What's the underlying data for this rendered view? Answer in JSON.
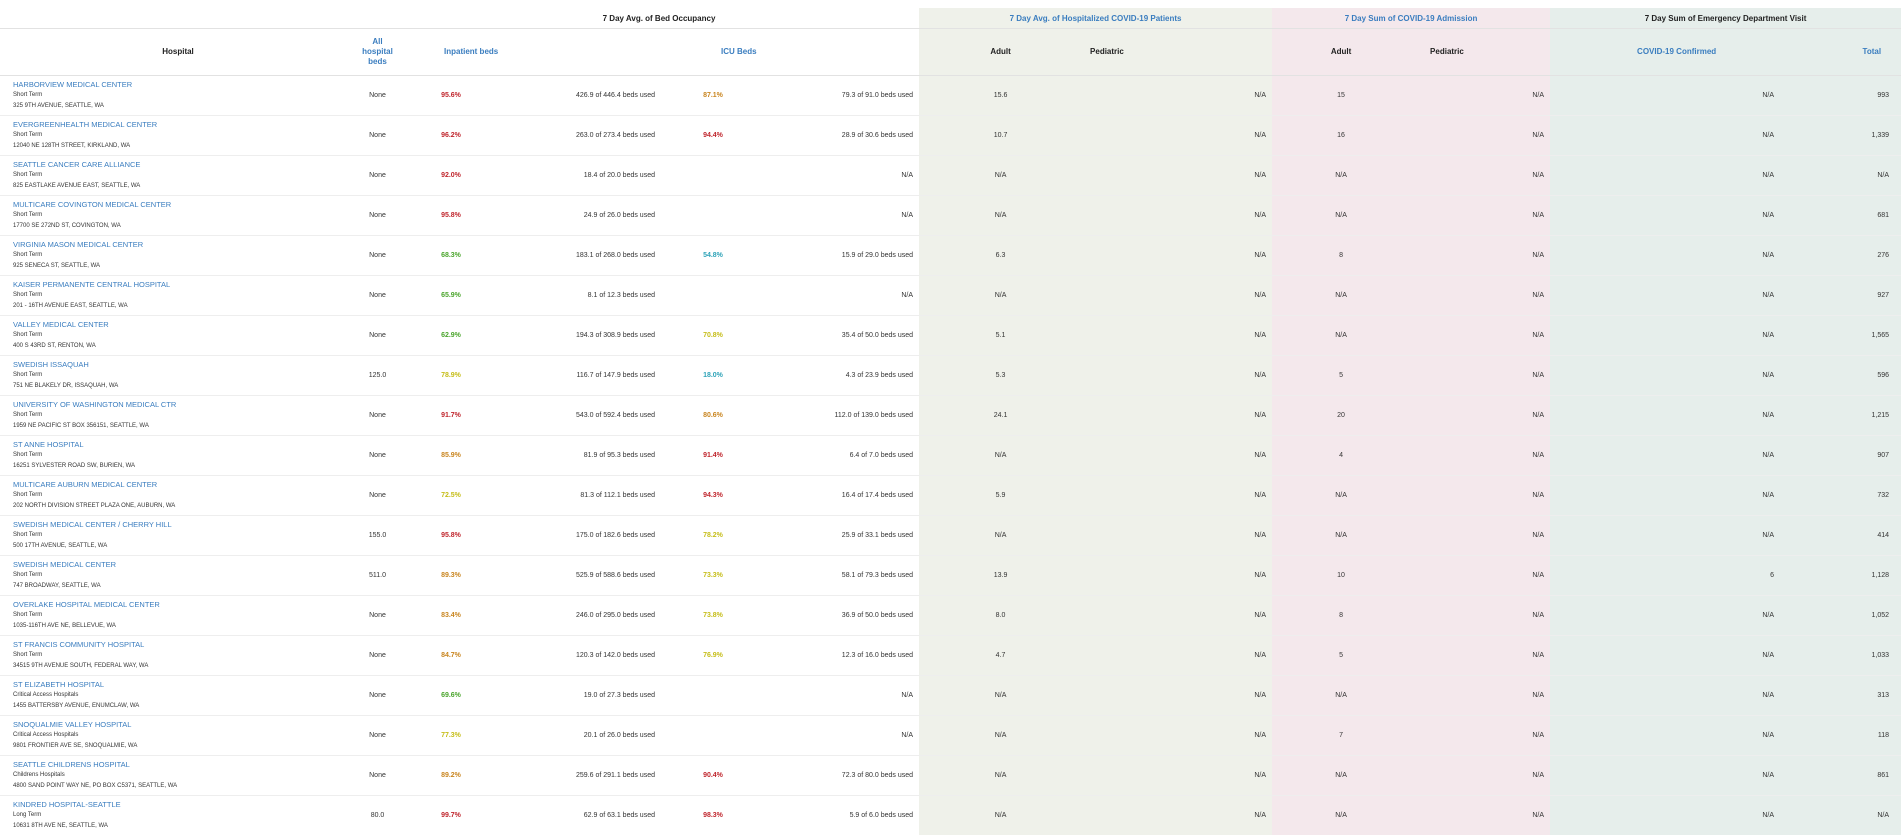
{
  "headers": {
    "group_bed": "7 Day Avg. of Bed Occupancy",
    "group_hosp": "7 Day Avg. of Hospitalized COVID-19 Patients",
    "group_adm": "7 Day Sum of COVID-19 Admission",
    "group_ed": "7 Day Sum of Emergency Department Visit",
    "hospital": "Hospital",
    "all_beds_1": "All",
    "all_beds_2": "hospital",
    "all_beds_3": "beds",
    "inpatient": "Inpatient beds",
    "icu": "ICU Beds",
    "adult": "Adult",
    "pediatric": "Pediatric",
    "adm_adult": "Adult",
    "adm_pediatric": "Pediatric",
    "covid_confirmed": "COVID-19 Confirmed",
    "total": "Total"
  },
  "colors": {
    "link_blue": "#3a7dbf",
    "red": "#c0262d",
    "orange": "#c9851f",
    "yellow": "#c6bd18",
    "green": "#4ba52d",
    "teal": "#2ea3b8",
    "hosp_bg": "#eff1ea",
    "adm_bg": "#f4e8ec",
    "ed_bg": "#e6eeeb"
  },
  "rows": [
    {
      "name": "HARBORVIEW MEDICAL CENTER",
      "type": "Short Term",
      "address": "325 9TH AVENUE, SEATTLE, WA",
      "all_beds": "None",
      "inp_pct": "95.6%",
      "inp_color": "#c0262d",
      "inp_used": "426.9 of 446.4 beds used",
      "icu_pct": "87.1%",
      "icu_color": "#c9851f",
      "icu_used": "79.3 of 91.0 beds used",
      "hosp_adult": "15.6",
      "hosp_ped": "N/A",
      "adm_adult": "15",
      "adm_ped": "N/A",
      "ed_covid": "N/A",
      "ed_total": "993"
    },
    {
      "name": "EVERGREENHEALTH MEDICAL CENTER",
      "type": "Short Term",
      "address": "12040 NE 128TH STREET, KIRKLAND, WA",
      "all_beds": "None",
      "inp_pct": "96.2%",
      "inp_color": "#c0262d",
      "inp_used": "263.0 of 273.4 beds used",
      "icu_pct": "94.4%",
      "icu_color": "#c0262d",
      "icu_used": "28.9 of 30.6 beds used",
      "hosp_adult": "10.7",
      "hosp_ped": "N/A",
      "adm_adult": "16",
      "adm_ped": "N/A",
      "ed_covid": "N/A",
      "ed_total": "1,339"
    },
    {
      "name": "SEATTLE CANCER CARE ALLIANCE",
      "type": "Short Term",
      "address": "825 EASTLAKE AVENUE EAST, SEATTLE, WA",
      "all_beds": "None",
      "inp_pct": "92.0%",
      "inp_color": "#c0262d",
      "inp_used": "18.4 of 20.0 beds used",
      "icu_pct": "",
      "icu_color": "",
      "icu_used": "N/A",
      "hosp_adult": "N/A",
      "hosp_ped": "N/A",
      "adm_adult": "N/A",
      "adm_ped": "N/A",
      "ed_covid": "N/A",
      "ed_total": "N/A"
    },
    {
      "name": "MULTICARE COVINGTON MEDICAL CENTER",
      "type": "Short Term",
      "address": "17700 SE 272ND ST, COVINGTON, WA",
      "all_beds": "None",
      "inp_pct": "95.8%",
      "inp_color": "#c0262d",
      "inp_used": "24.9 of 26.0 beds used",
      "icu_pct": "",
      "icu_color": "",
      "icu_used": "N/A",
      "hosp_adult": "N/A",
      "hosp_ped": "N/A",
      "adm_adult": "N/A",
      "adm_ped": "N/A",
      "ed_covid": "N/A",
      "ed_total": "681"
    },
    {
      "name": "VIRGINIA MASON MEDICAL CENTER",
      "type": "Short Term",
      "address": "925 SENECA ST, SEATTLE, WA",
      "all_beds": "None",
      "inp_pct": "68.3%",
      "inp_color": "#4ba52d",
      "inp_used": "183.1 of 268.0 beds used",
      "icu_pct": "54.8%",
      "icu_color": "#2ea3b8",
      "icu_used": "15.9 of 29.0 beds used",
      "hosp_adult": "6.3",
      "hosp_ped": "N/A",
      "adm_adult": "8",
      "adm_ped": "N/A",
      "ed_covid": "N/A",
      "ed_total": "276"
    },
    {
      "name": "KAISER PERMANENTE CENTRAL HOSPITAL",
      "type": "Short Term",
      "address": "201 - 16TH AVENUE EAST, SEATTLE, WA",
      "all_beds": "None",
      "inp_pct": "65.9%",
      "inp_color": "#4ba52d",
      "inp_used": "8.1 of 12.3 beds used",
      "icu_pct": "",
      "icu_color": "",
      "icu_used": "N/A",
      "hosp_adult": "N/A",
      "hosp_ped": "N/A",
      "adm_adult": "N/A",
      "adm_ped": "N/A",
      "ed_covid": "N/A",
      "ed_total": "927"
    },
    {
      "name": "VALLEY MEDICAL CENTER",
      "type": "Short Term",
      "address": "400 S 43RD ST, RENTON, WA",
      "all_beds": "None",
      "inp_pct": "62.9%",
      "inp_color": "#4ba52d",
      "inp_used": "194.3 of 308.9 beds used",
      "icu_pct": "70.8%",
      "icu_color": "#c6bd18",
      "icu_used": "35.4 of 50.0 beds used",
      "hosp_adult": "5.1",
      "hosp_ped": "N/A",
      "adm_adult": "N/A",
      "adm_ped": "N/A",
      "ed_covid": "N/A",
      "ed_total": "1,565"
    },
    {
      "name": "SWEDISH ISSAQUAH",
      "type": "Short Term",
      "address": "751 NE BLAKELY DR, ISSAQUAH, WA",
      "all_beds": "125.0",
      "inp_pct": "78.9%",
      "inp_color": "#c6bd18",
      "inp_used": "116.7 of 147.9 beds used",
      "icu_pct": "18.0%",
      "icu_color": "#2ea3b8",
      "icu_used": "4.3 of 23.9 beds used",
      "hosp_adult": "5.3",
      "hosp_ped": "N/A",
      "adm_adult": "5",
      "adm_ped": "N/A",
      "ed_covid": "N/A",
      "ed_total": "596"
    },
    {
      "name": "UNIVERSITY OF WASHINGTON MEDICAL CTR",
      "type": "Short Term",
      "address": "1959 NE PACIFIC ST BOX 356151, SEATTLE, WA",
      "all_beds": "None",
      "inp_pct": "91.7%",
      "inp_color": "#c0262d",
      "inp_used": "543.0 of 592.4 beds used",
      "icu_pct": "80.6%",
      "icu_color": "#c9851f",
      "icu_used": "112.0 of 139.0 beds used",
      "hosp_adult": "24.1",
      "hosp_ped": "N/A",
      "adm_adult": "20",
      "adm_ped": "N/A",
      "ed_covid": "N/A",
      "ed_total": "1,215"
    },
    {
      "name": "ST ANNE HOSPITAL",
      "type": "Short Term",
      "address": "16251 SYLVESTER ROAD SW, BURIEN, WA",
      "all_beds": "None",
      "inp_pct": "85.9%",
      "inp_color": "#c9851f",
      "inp_used": "81.9 of 95.3 beds used",
      "icu_pct": "91.4%",
      "icu_color": "#c0262d",
      "icu_used": "6.4 of 7.0 beds used",
      "hosp_adult": "N/A",
      "hosp_ped": "N/A",
      "adm_adult": "4",
      "adm_ped": "N/A",
      "ed_covid": "N/A",
      "ed_total": "907"
    },
    {
      "name": "MULTICARE AUBURN MEDICAL CENTER",
      "type": "Short Term",
      "address": "202 NORTH DIVISION STREET PLAZA ONE, AUBURN, WA",
      "all_beds": "None",
      "inp_pct": "72.5%",
      "inp_color": "#c6bd18",
      "inp_used": "81.3 of 112.1 beds used",
      "icu_pct": "94.3%",
      "icu_color": "#c0262d",
      "icu_used": "16.4 of 17.4 beds used",
      "hosp_adult": "5.9",
      "hosp_ped": "N/A",
      "adm_adult": "N/A",
      "adm_ped": "N/A",
      "ed_covid": "N/A",
      "ed_total": "732"
    },
    {
      "name": "SWEDISH MEDICAL CENTER / CHERRY HILL",
      "type": "Short Term",
      "address": "500 17TH AVENUE, SEATTLE, WA",
      "all_beds": "155.0",
      "inp_pct": "95.8%",
      "inp_color": "#c0262d",
      "inp_used": "175.0 of 182.6 beds used",
      "icu_pct": "78.2%",
      "icu_color": "#c6bd18",
      "icu_used": "25.9 of 33.1 beds used",
      "hosp_adult": "N/A",
      "hosp_ped": "N/A",
      "adm_adult": "N/A",
      "adm_ped": "N/A",
      "ed_covid": "N/A",
      "ed_total": "414"
    },
    {
      "name": "SWEDISH MEDICAL CENTER",
      "type": "Short Term",
      "address": "747 BROADWAY, SEATTLE, WA",
      "all_beds": "511.0",
      "inp_pct": "89.3%",
      "inp_color": "#c9851f",
      "inp_used": "525.9 of 588.6 beds used",
      "icu_pct": "73.3%",
      "icu_color": "#c6bd18",
      "icu_used": "58.1 of 79.3 beds used",
      "hosp_adult": "13.9",
      "hosp_ped": "N/A",
      "adm_adult": "10",
      "adm_ped": "N/A",
      "ed_covid": "6",
      "ed_total": "1,128"
    },
    {
      "name": "OVERLAKE HOSPITAL MEDICAL CENTER",
      "type": "Short Term",
      "address": "1035-116TH AVE NE, BELLEVUE, WA",
      "all_beds": "None",
      "inp_pct": "83.4%",
      "inp_color": "#c9851f",
      "inp_used": "246.0 of 295.0 beds used",
      "icu_pct": "73.8%",
      "icu_color": "#c6bd18",
      "icu_used": "36.9 of 50.0 beds used",
      "hosp_adult": "8.0",
      "hosp_ped": "N/A",
      "adm_adult": "8",
      "adm_ped": "N/A",
      "ed_covid": "N/A",
      "ed_total": "1,052"
    },
    {
      "name": "ST FRANCIS COMMUNITY HOSPITAL",
      "type": "Short Term",
      "address": "34515 9TH AVENUE SOUTH, FEDERAL WAY, WA",
      "all_beds": "None",
      "inp_pct": "84.7%",
      "inp_color": "#c9851f",
      "inp_used": "120.3 of 142.0 beds used",
      "icu_pct": "76.9%",
      "icu_color": "#c6bd18",
      "icu_used": "12.3 of 16.0 beds used",
      "hosp_adult": "4.7",
      "hosp_ped": "N/A",
      "adm_adult": "5",
      "adm_ped": "N/A",
      "ed_covid": "N/A",
      "ed_total": "1,033"
    },
    {
      "name": "ST ELIZABETH HOSPITAL",
      "type": "Critical Access Hospitals",
      "address": "1455 BATTERSBY AVENUE, ENUMCLAW, WA",
      "all_beds": "None",
      "inp_pct": "69.6%",
      "inp_color": "#4ba52d",
      "inp_used": "19.0 of 27.3 beds used",
      "icu_pct": "",
      "icu_color": "",
      "icu_used": "N/A",
      "hosp_adult": "N/A",
      "hosp_ped": "N/A",
      "adm_adult": "N/A",
      "adm_ped": "N/A",
      "ed_covid": "N/A",
      "ed_total": "313"
    },
    {
      "name": "SNOQUALMIE VALLEY HOSPITAL",
      "type": "Critical Access Hospitals",
      "address": "9801 FRONTIER AVE SE, SNOQUALMIE, WA",
      "all_beds": "None",
      "inp_pct": "77.3%",
      "inp_color": "#c6bd18",
      "inp_used": "20.1 of 26.0 beds used",
      "icu_pct": "",
      "icu_color": "",
      "icu_used": "N/A",
      "hosp_adult": "N/A",
      "hosp_ped": "N/A",
      "adm_adult": "7",
      "adm_ped": "N/A",
      "ed_covid": "N/A",
      "ed_total": "118"
    },
    {
      "name": "SEATTLE CHILDRENS HOSPITAL",
      "type": "Childrens Hospitals",
      "address": "4800 SAND POINT WAY NE, PO BOX C5371, SEATTLE, WA",
      "all_beds": "None",
      "inp_pct": "89.2%",
      "inp_color": "#c9851f",
      "inp_used": "259.6 of 291.1 beds used",
      "icu_pct": "90.4%",
      "icu_color": "#c0262d",
      "icu_used": "72.3 of 80.0 beds used",
      "hosp_adult": "N/A",
      "hosp_ped": "N/A",
      "adm_adult": "N/A",
      "adm_ped": "N/A",
      "ed_covid": "N/A",
      "ed_total": "861"
    },
    {
      "name": "KINDRED HOSPITAL-SEATTLE",
      "type": "Long Term",
      "address": "10631 8TH AVE NE, SEATTLE, WA",
      "all_beds": "80.0",
      "inp_pct": "99.7%",
      "inp_color": "#c0262d",
      "inp_used": "62.9 of 63.1 beds used",
      "icu_pct": "98.3%",
      "icu_color": "#c0262d",
      "icu_used": "5.9 of 6.0 beds used",
      "hosp_adult": "N/A",
      "hosp_ped": "N/A",
      "adm_adult": "N/A",
      "adm_ped": "N/A",
      "ed_covid": "N/A",
      "ed_total": "N/A"
    }
  ]
}
